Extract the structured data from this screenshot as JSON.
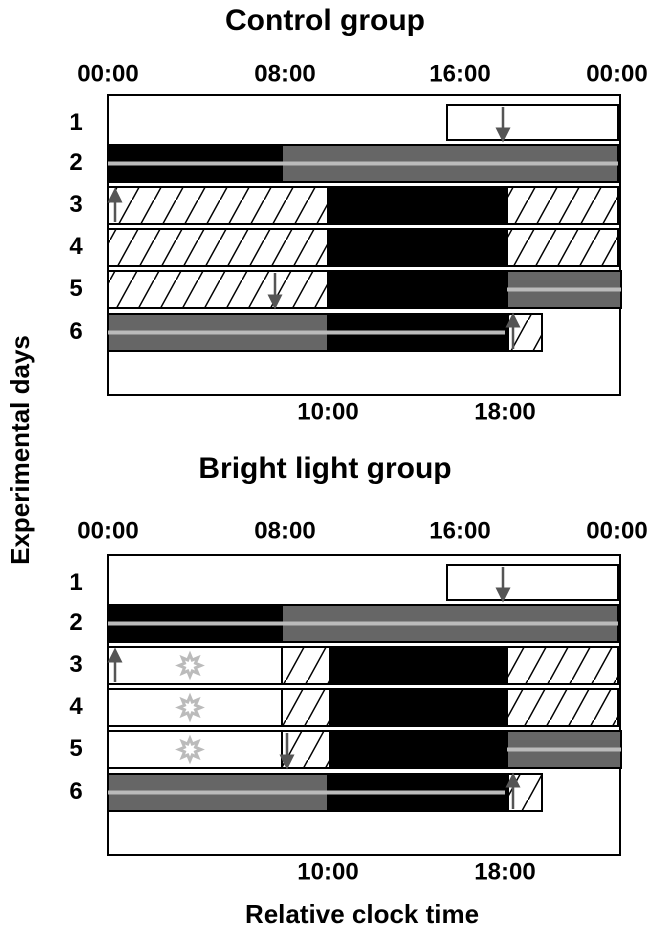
{
  "panels": [
    {
      "title": "Control group",
      "top_ticks": [
        "00:00",
        "08:00",
        "16:00",
        "00:00"
      ],
      "bottom_ticks": [
        "10:00",
        "18:00"
      ],
      "days": [
        "1",
        "2",
        "3",
        "4",
        "5",
        "6"
      ]
    },
    {
      "title": "Bright light group",
      "top_ticks": [
        "00:00",
        "08:00",
        "16:00",
        "00:00"
      ],
      "bottom_ticks": [
        "10:00",
        "18:00"
      ],
      "days": [
        "1",
        "2",
        "3",
        "4",
        "5",
        "6"
      ]
    }
  ],
  "y_label": "Experimental days",
  "x_label": "Relative clock time"
}
